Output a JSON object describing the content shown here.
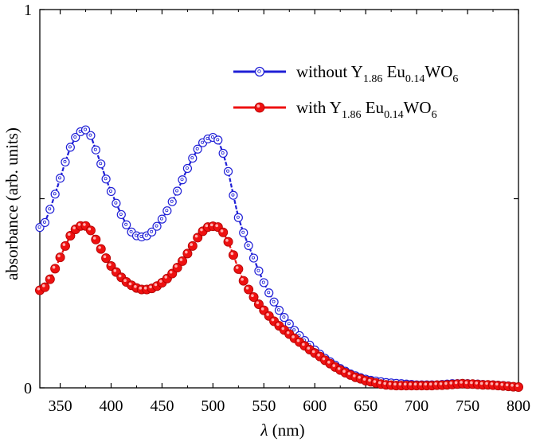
{
  "chart_data": {
    "type": "line",
    "xlabel_symbol": "λ",
    "xlabel_unit": " (nm)",
    "ylabel": "absorbance (arb. units)",
    "xlim": [
      330,
      800
    ],
    "ylim": [
      0,
      1
    ],
    "xticks": [
      350,
      400,
      450,
      500,
      550,
      600,
      650,
      700,
      750,
      800
    ],
    "yticks": [
      0,
      1
    ],
    "legend_position": "top-right",
    "series": [
      {
        "label_prefix": "without Y",
        "label_sub1": "1.86",
        "label_mid": " Eu",
        "label_sub2": "0.14",
        "label_mid2": "WO",
        "label_sub3": "6",
        "color": "#1f1fd6",
        "marker": "open-circle",
        "x": [
          330,
          335,
          340,
          345,
          350,
          355,
          360,
          365,
          370,
          375,
          380,
          385,
          390,
          395,
          400,
          405,
          410,
          415,
          420,
          425,
          430,
          435,
          440,
          445,
          450,
          455,
          460,
          465,
          470,
          475,
          480,
          485,
          490,
          495,
          500,
          505,
          510,
          515,
          520,
          525,
          530,
          535,
          540,
          545,
          550,
          555,
          560,
          565,
          570,
          575,
          580,
          585,
          590,
          595,
          600,
          605,
          610,
          615,
          620,
          625,
          630,
          635,
          640,
          645,
          650,
          655,
          660,
          665,
          670,
          675,
          680,
          685,
          690,
          695,
          700,
          705,
          710,
          715,
          720,
          725,
          730,
          735,
          740,
          745,
          750,
          755,
          760,
          765,
          770,
          775,
          780,
          785,
          790,
          795,
          800
        ],
        "y": [
          0.424,
          0.437,
          0.472,
          0.512,
          0.554,
          0.597,
          0.636,
          0.662,
          0.677,
          0.682,
          0.667,
          0.629,
          0.592,
          0.552,
          0.519,
          0.488,
          0.458,
          0.431,
          0.412,
          0.402,
          0.399,
          0.402,
          0.412,
          0.427,
          0.446,
          0.468,
          0.492,
          0.52,
          0.55,
          0.58,
          0.607,
          0.631,
          0.648,
          0.658,
          0.662,
          0.655,
          0.62,
          0.572,
          0.509,
          0.45,
          0.41,
          0.376,
          0.343,
          0.309,
          0.278,
          0.251,
          0.227,
          0.205,
          0.186,
          0.169,
          0.152,
          0.138,
          0.125,
          0.113,
          0.1,
          0.089,
          0.078,
          0.069,
          0.06,
          0.051,
          0.044,
          0.037,
          0.032,
          0.027,
          0.023,
          0.02,
          0.018,
          0.016,
          0.014,
          0.013,
          0.012,
          0.011,
          0.01,
          0.009,
          0.008,
          0.008,
          0.008,
          0.008,
          0.008,
          0.009,
          0.01,
          0.011,
          0.011,
          0.011,
          0.011,
          0.01,
          0.01,
          0.009,
          0.008,
          0.008,
          0.007,
          0.006,
          0.005,
          0.003,
          0.002
        ]
      },
      {
        "label_prefix": "with Y",
        "label_sub1": "1.86",
        "label_mid": " Eu",
        "label_sub2": "0.14",
        "label_mid2": "WO",
        "label_sub3": "6",
        "color": "#ee1111",
        "marker": "filled-circle",
        "x": [
          330,
          335,
          340,
          345,
          350,
          355,
          360,
          365,
          370,
          375,
          380,
          385,
          390,
          395,
          400,
          405,
          410,
          415,
          420,
          425,
          430,
          435,
          440,
          445,
          450,
          455,
          460,
          465,
          470,
          475,
          480,
          485,
          490,
          495,
          500,
          505,
          510,
          515,
          520,
          525,
          530,
          535,
          540,
          545,
          550,
          555,
          560,
          565,
          570,
          575,
          580,
          585,
          590,
          595,
          600,
          605,
          610,
          615,
          620,
          625,
          630,
          635,
          640,
          645,
          650,
          655,
          660,
          665,
          670,
          675,
          680,
          685,
          690,
          695,
          700,
          705,
          710,
          715,
          720,
          725,
          730,
          735,
          740,
          745,
          750,
          755,
          760,
          765,
          770,
          775,
          780,
          785,
          790,
          795,
          800
        ],
        "y": [
          0.258,
          0.266,
          0.287,
          0.315,
          0.345,
          0.375,
          0.402,
          0.419,
          0.428,
          0.428,
          0.416,
          0.392,
          0.367,
          0.343,
          0.322,
          0.306,
          0.292,
          0.28,
          0.271,
          0.264,
          0.26,
          0.26,
          0.263,
          0.269,
          0.278,
          0.289,
          0.302,
          0.318,
          0.335,
          0.355,
          0.375,
          0.397,
          0.414,
          0.425,
          0.427,
          0.425,
          0.411,
          0.386,
          0.351,
          0.314,
          0.283,
          0.26,
          0.24,
          0.221,
          0.205,
          0.19,
          0.176,
          0.164,
          0.153,
          0.142,
          0.131,
          0.121,
          0.111,
          0.101,
          0.092,
          0.083,
          0.073,
          0.064,
          0.055,
          0.047,
          0.04,
          0.034,
          0.028,
          0.024,
          0.019,
          0.016,
          0.013,
          0.01,
          0.008,
          0.007,
          0.006,
          0.006,
          0.006,
          0.006,
          0.006,
          0.006,
          0.006,
          0.006,
          0.007,
          0.007,
          0.008,
          0.009,
          0.01,
          0.011,
          0.01,
          0.01,
          0.009,
          0.008,
          0.008,
          0.007,
          0.006,
          0.005,
          0.004,
          0.003,
          0.002
        ]
      }
    ]
  }
}
